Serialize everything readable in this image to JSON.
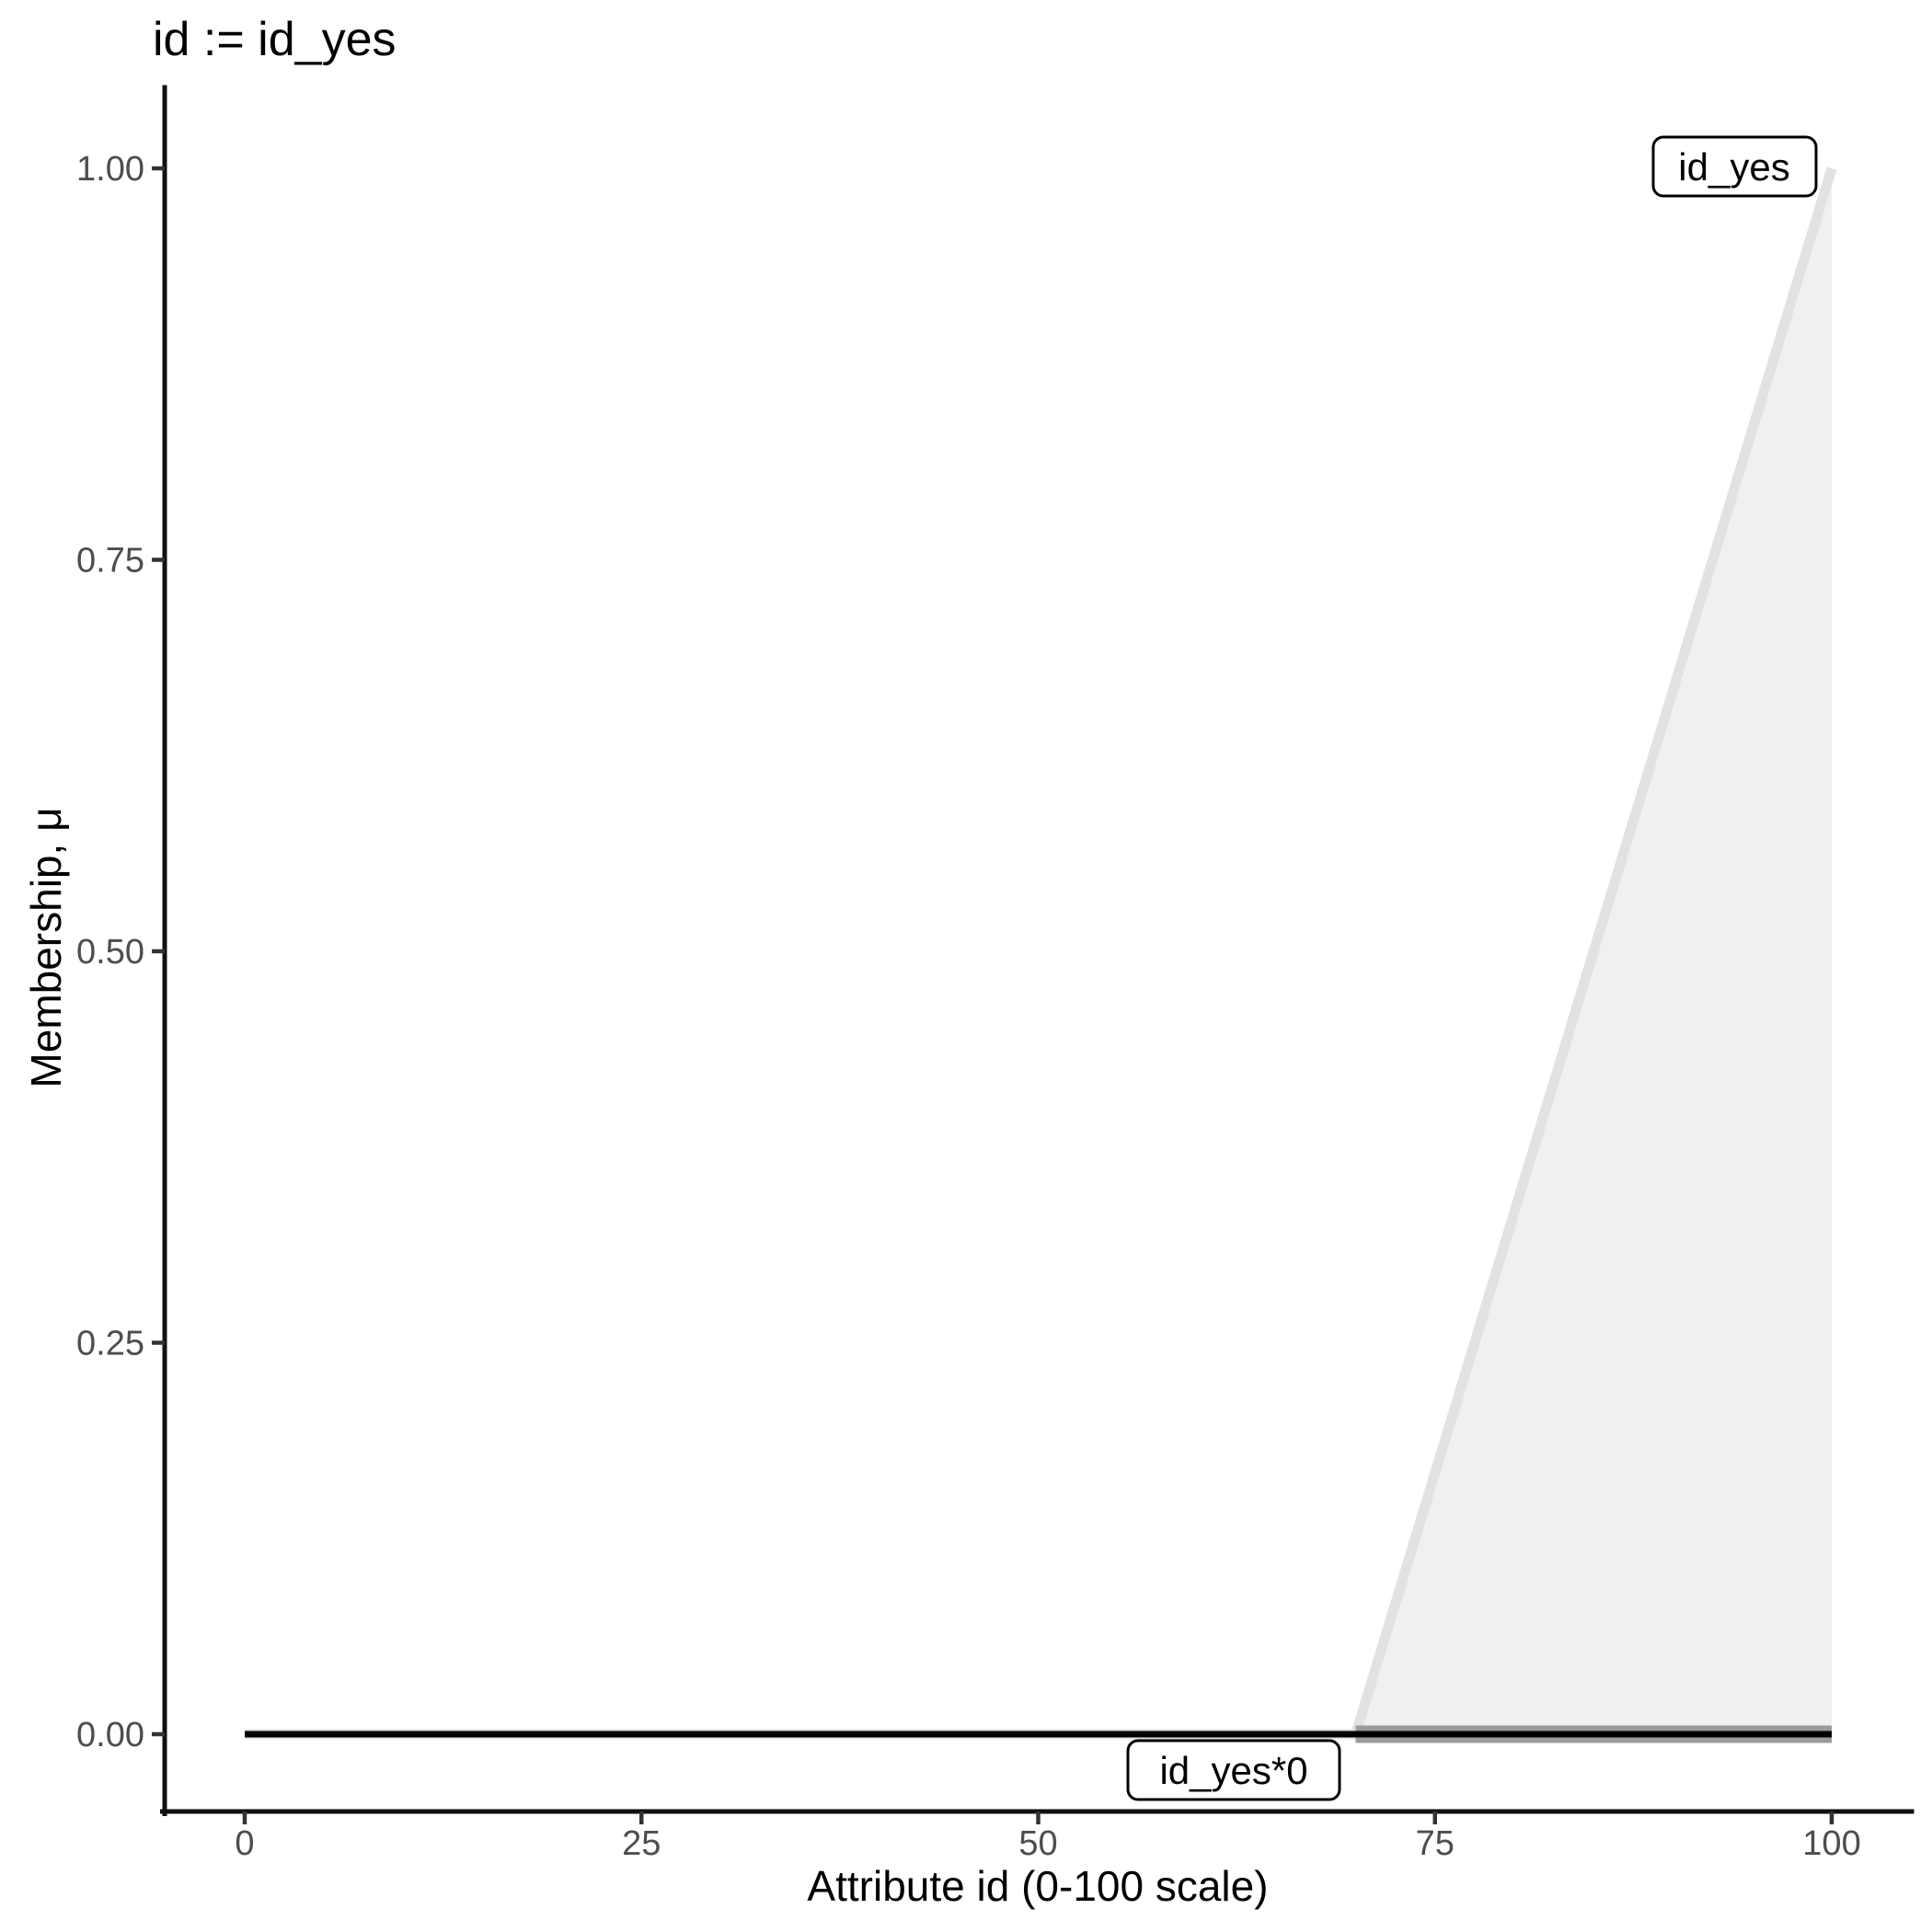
{
  "figure": {
    "background": "#ffffff"
  },
  "chart_data": {
    "type": "area",
    "title": "id := id_yes",
    "xlabel": "Attribute id (0-100 scale)",
    "ylabel": "Membership, μ",
    "xlim": [
      0,
      100
    ],
    "ylim": [
      0,
      1
    ],
    "grid": false,
    "legend": "none",
    "x_ticks": [
      0,
      25,
      50,
      75,
      100
    ],
    "x_tick_labels": [
      "0",
      "25",
      "50",
      "75",
      "100"
    ],
    "y_ticks": [
      0,
      0.25,
      0.5,
      0.75,
      1
    ],
    "y_tick_labels": [
      "0.00",
      "0.25",
      "0.50",
      "0.75",
      "1.00"
    ],
    "series": [
      {
        "name": "id_yes",
        "role": "fuzzy membership function (right ramp)",
        "points": [
          [
            0,
            0
          ],
          [
            70,
            0
          ],
          [
            100,
            1
          ]
        ],
        "color": "#e2e2e2",
        "fill": "#f0f0f0",
        "area": true,
        "line_width": 11
      },
      {
        "name": "id_yes*0",
        "role": "membership function scaled by zero (flat at 0)",
        "points": [
          [
            0,
            0
          ],
          [
            100,
            0
          ]
        ],
        "color": "#000000",
        "area": false,
        "line_width": 7
      },
      {
        "name": "id_yes_area_baseline",
        "role": "bottom edge of shaded support region x in [70,100]",
        "points": [
          [
            70,
            0
          ],
          [
            100,
            0
          ]
        ],
        "color": "#9b9b9b",
        "area": false,
        "line_width": 19
      }
    ],
    "annotations": [
      {
        "text": "id_yes",
        "boxed": true,
        "position": "near curve apex, x=100, mu=1"
      },
      {
        "text": "id_yes*0",
        "boxed": true,
        "position": "below flat zero line near x=60"
      }
    ],
    "axis_color": "#111111",
    "tick_color": "#333333",
    "tick_label_color": "#4d4d4d"
  }
}
